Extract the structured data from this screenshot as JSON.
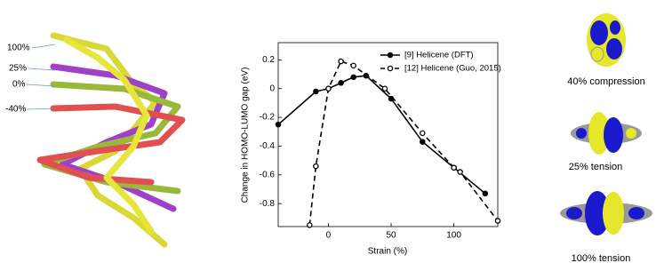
{
  "chart_data": {
    "type": "line",
    "xlabel": "Strain (%)",
    "ylabel": "Change in HOMO-LUMO gap (eV)",
    "xlim": [
      -40,
      135
    ],
    "ylim": [
      -0.96,
      0.32
    ],
    "xticks": [
      0,
      50,
      100
    ],
    "yticks": [
      -0.8,
      -0.6,
      -0.4,
      -0.2,
      0,
      0.2
    ],
    "legend": "upper right",
    "series": [
      {
        "name": "[9] Helicene (DFT)",
        "color": "#000000",
        "line_style": "solid",
        "marker": "filled",
        "x": [
          -40,
          -10,
          0,
          10,
          20,
          30,
          50,
          75,
          100,
          125
        ],
        "values": [
          -0.25,
          -0.02,
          0,
          0.04,
          0.08,
          0.09,
          -0.07,
          -0.37,
          -0.55,
          -0.73
        ]
      },
      {
        "name": "[12] Helicene (Guo, 2015)",
        "color": "#000000",
        "line_style": "dashed",
        "marker": "open",
        "x": [
          -15,
          -10,
          0,
          10,
          20,
          45,
          75,
          100,
          105,
          135
        ],
        "values": [
          -0.95,
          -0.54,
          0,
          0.19,
          0.16,
          0,
          -0.31,
          -0.55,
          -0.58,
          -0.92
        ]
      }
    ]
  },
  "strain_labels": [
    "100%",
    "25%",
    "0%",
    "-40%"
  ],
  "orbital_captions": [
    "40% compression",
    "25% tension",
    "100% tension"
  ]
}
